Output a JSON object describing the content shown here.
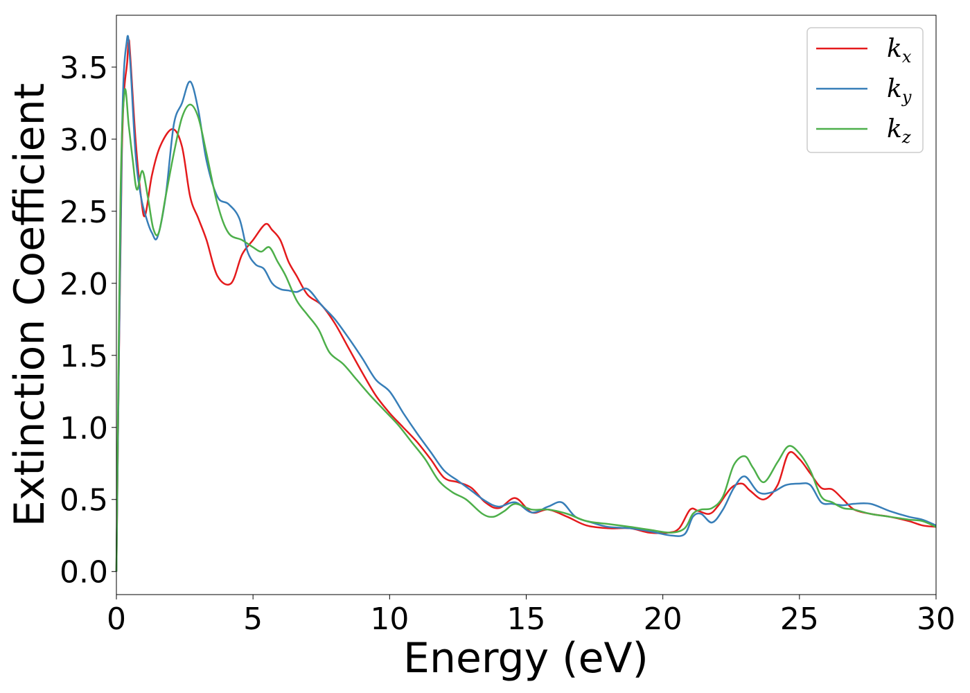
{
  "chart_data": {
    "type": "line",
    "title": "",
    "xlabel": "Energy (eV)",
    "ylabel": "Extinction Coefficient",
    "xlim": [
      0,
      30
    ],
    "ylim": [
      -0.16,
      3.86
    ],
    "xticks": [
      0,
      5,
      10,
      15,
      20,
      25,
      30
    ],
    "xtick_labels": [
      "0",
      "5",
      "10",
      "15",
      "20",
      "25",
      "30"
    ],
    "yticks": [
      0.0,
      0.5,
      1.0,
      1.5,
      2.0,
      2.5,
      3.0,
      3.5
    ],
    "ytick_labels": [
      "0.0",
      "0.5",
      "1.0",
      "1.5",
      "2.0",
      "2.5",
      "3.0",
      "3.5"
    ],
    "grid": false,
    "legend_position": "top-right",
    "series": [
      {
        "name": "k_x",
        "label_base": "k",
        "label_sub": "x",
        "color": "#e41a1c",
        "x": [
          0,
          0.2,
          0.4,
          0.45,
          0.5,
          0.7,
          0.9,
          1.05,
          1.3,
          1.6,
          2.05,
          2.4,
          2.7,
          3.0,
          3.3,
          3.7,
          4.2,
          4.6,
          5.0,
          5.45,
          5.7,
          6.0,
          6.3,
          6.6,
          7.0,
          7.5,
          8.0,
          8.5,
          9.0,
          9.5,
          10.0,
          10.5,
          11.0,
          11.5,
          12.0,
          12.5,
          13.0,
          13.5,
          14.0,
          14.6,
          15.2,
          15.8,
          16.5,
          17.2,
          18.0,
          18.8,
          19.5,
          20.2,
          20.6,
          21.0,
          21.3,
          21.7,
          22.0,
          22.5,
          22.9,
          23.2,
          23.7,
          24.2,
          24.6,
          25.0,
          25.4,
          25.8,
          26.2,
          26.6,
          27.0,
          27.6,
          28.3,
          29.0,
          29.5,
          30.0
        ],
        "y": [
          0.0,
          2.9,
          3.55,
          3.68,
          3.6,
          3.0,
          2.6,
          2.47,
          2.75,
          2.95,
          3.07,
          2.95,
          2.6,
          2.45,
          2.3,
          2.05,
          2.0,
          2.2,
          2.3,
          2.41,
          2.37,
          2.3,
          2.15,
          2.05,
          1.92,
          1.85,
          1.72,
          1.55,
          1.38,
          1.22,
          1.1,
          1.0,
          0.9,
          0.78,
          0.65,
          0.62,
          0.58,
          0.48,
          0.44,
          0.51,
          0.41,
          0.43,
          0.38,
          0.32,
          0.3,
          0.3,
          0.27,
          0.27,
          0.3,
          0.43,
          0.42,
          0.4,
          0.45,
          0.58,
          0.61,
          0.56,
          0.5,
          0.6,
          0.82,
          0.78,
          0.68,
          0.58,
          0.57,
          0.5,
          0.43,
          0.4,
          0.38,
          0.35,
          0.32,
          0.31
        ]
      },
      {
        "name": "k_y",
        "label_base": "k",
        "label_sub": "y",
        "color": "#377eb8",
        "x": [
          0,
          0.2,
          0.38,
          0.5,
          0.7,
          0.9,
          1.1,
          1.3,
          1.5,
          1.8,
          2.1,
          2.4,
          2.7,
          3.0,
          3.3,
          3.7,
          4.1,
          4.5,
          4.8,
          5.1,
          5.4,
          5.7,
          6.0,
          6.3,
          6.6,
          7.0,
          7.5,
          8.0,
          8.5,
          9.0,
          9.5,
          10.0,
          10.5,
          11.0,
          11.5,
          12.0,
          12.5,
          13.0,
          13.5,
          14.0,
          14.6,
          15.2,
          15.8,
          16.3,
          16.8,
          17.4,
          18.0,
          18.8,
          19.5,
          20.3,
          20.8,
          21.1,
          21.4,
          21.8,
          22.2,
          22.6,
          23.0,
          23.5,
          24.0,
          24.5,
          25.0,
          25.4,
          25.8,
          26.2,
          26.6,
          27.0,
          27.6,
          28.3,
          29.0,
          29.5,
          30.0
        ],
        "y": [
          0.0,
          3.0,
          3.68,
          3.55,
          2.9,
          2.6,
          2.45,
          2.35,
          2.32,
          2.6,
          3.1,
          3.25,
          3.4,
          3.2,
          2.85,
          2.6,
          2.55,
          2.45,
          2.22,
          2.13,
          2.1,
          2.0,
          1.96,
          1.95,
          1.94,
          1.96,
          1.85,
          1.75,
          1.62,
          1.48,
          1.33,
          1.25,
          1.1,
          0.96,
          0.83,
          0.7,
          0.63,
          0.56,
          0.49,
          0.45,
          0.48,
          0.41,
          0.45,
          0.48,
          0.38,
          0.34,
          0.31,
          0.3,
          0.28,
          0.25,
          0.26,
          0.38,
          0.4,
          0.34,
          0.43,
          0.58,
          0.66,
          0.55,
          0.55,
          0.6,
          0.61,
          0.6,
          0.48,
          0.47,
          0.46,
          0.47,
          0.47,
          0.42,
          0.38,
          0.36,
          0.32
        ]
      },
      {
        "name": "k_z",
        "label_base": "k",
        "label_sub": "z",
        "color": "#4daf4a",
        "x": [
          0,
          0.15,
          0.3,
          0.45,
          0.6,
          0.75,
          0.95,
          1.15,
          1.35,
          1.55,
          1.8,
          2.1,
          2.4,
          2.7,
          3.0,
          3.3,
          3.7,
          4.1,
          4.6,
          5.0,
          5.3,
          5.6,
          5.9,
          6.2,
          6.6,
          7.0,
          7.4,
          7.8,
          8.3,
          8.8,
          9.3,
          9.8,
          10.3,
          10.8,
          11.3,
          11.8,
          12.3,
          12.8,
          13.4,
          13.8,
          14.2,
          14.6,
          15.2,
          15.8,
          16.5,
          17.2,
          18.0,
          18.8,
          19.5,
          20.3,
          20.8,
          21.1,
          21.4,
          21.8,
          22.2,
          22.6,
          23.0,
          23.3,
          23.7,
          24.2,
          24.6,
          25.0,
          25.4,
          25.8,
          26.2,
          26.6,
          27.0,
          27.6,
          28.3,
          29.0,
          29.5,
          30.0
        ],
        "y": [
          0.0,
          2.6,
          3.33,
          3.1,
          2.85,
          2.65,
          2.78,
          2.6,
          2.38,
          2.35,
          2.6,
          2.9,
          3.15,
          3.24,
          3.15,
          2.9,
          2.55,
          2.35,
          2.3,
          2.25,
          2.22,
          2.25,
          2.15,
          2.05,
          1.88,
          1.78,
          1.68,
          1.52,
          1.44,
          1.33,
          1.22,
          1.12,
          1.02,
          0.9,
          0.78,
          0.63,
          0.55,
          0.5,
          0.4,
          0.38,
          0.42,
          0.47,
          0.43,
          0.43,
          0.4,
          0.35,
          0.33,
          0.31,
          0.29,
          0.27,
          0.3,
          0.4,
          0.43,
          0.44,
          0.52,
          0.74,
          0.8,
          0.72,
          0.62,
          0.76,
          0.87,
          0.82,
          0.7,
          0.52,
          0.48,
          0.44,
          0.43,
          0.4,
          0.38,
          0.36,
          0.35,
          0.31
        ]
      }
    ]
  }
}
